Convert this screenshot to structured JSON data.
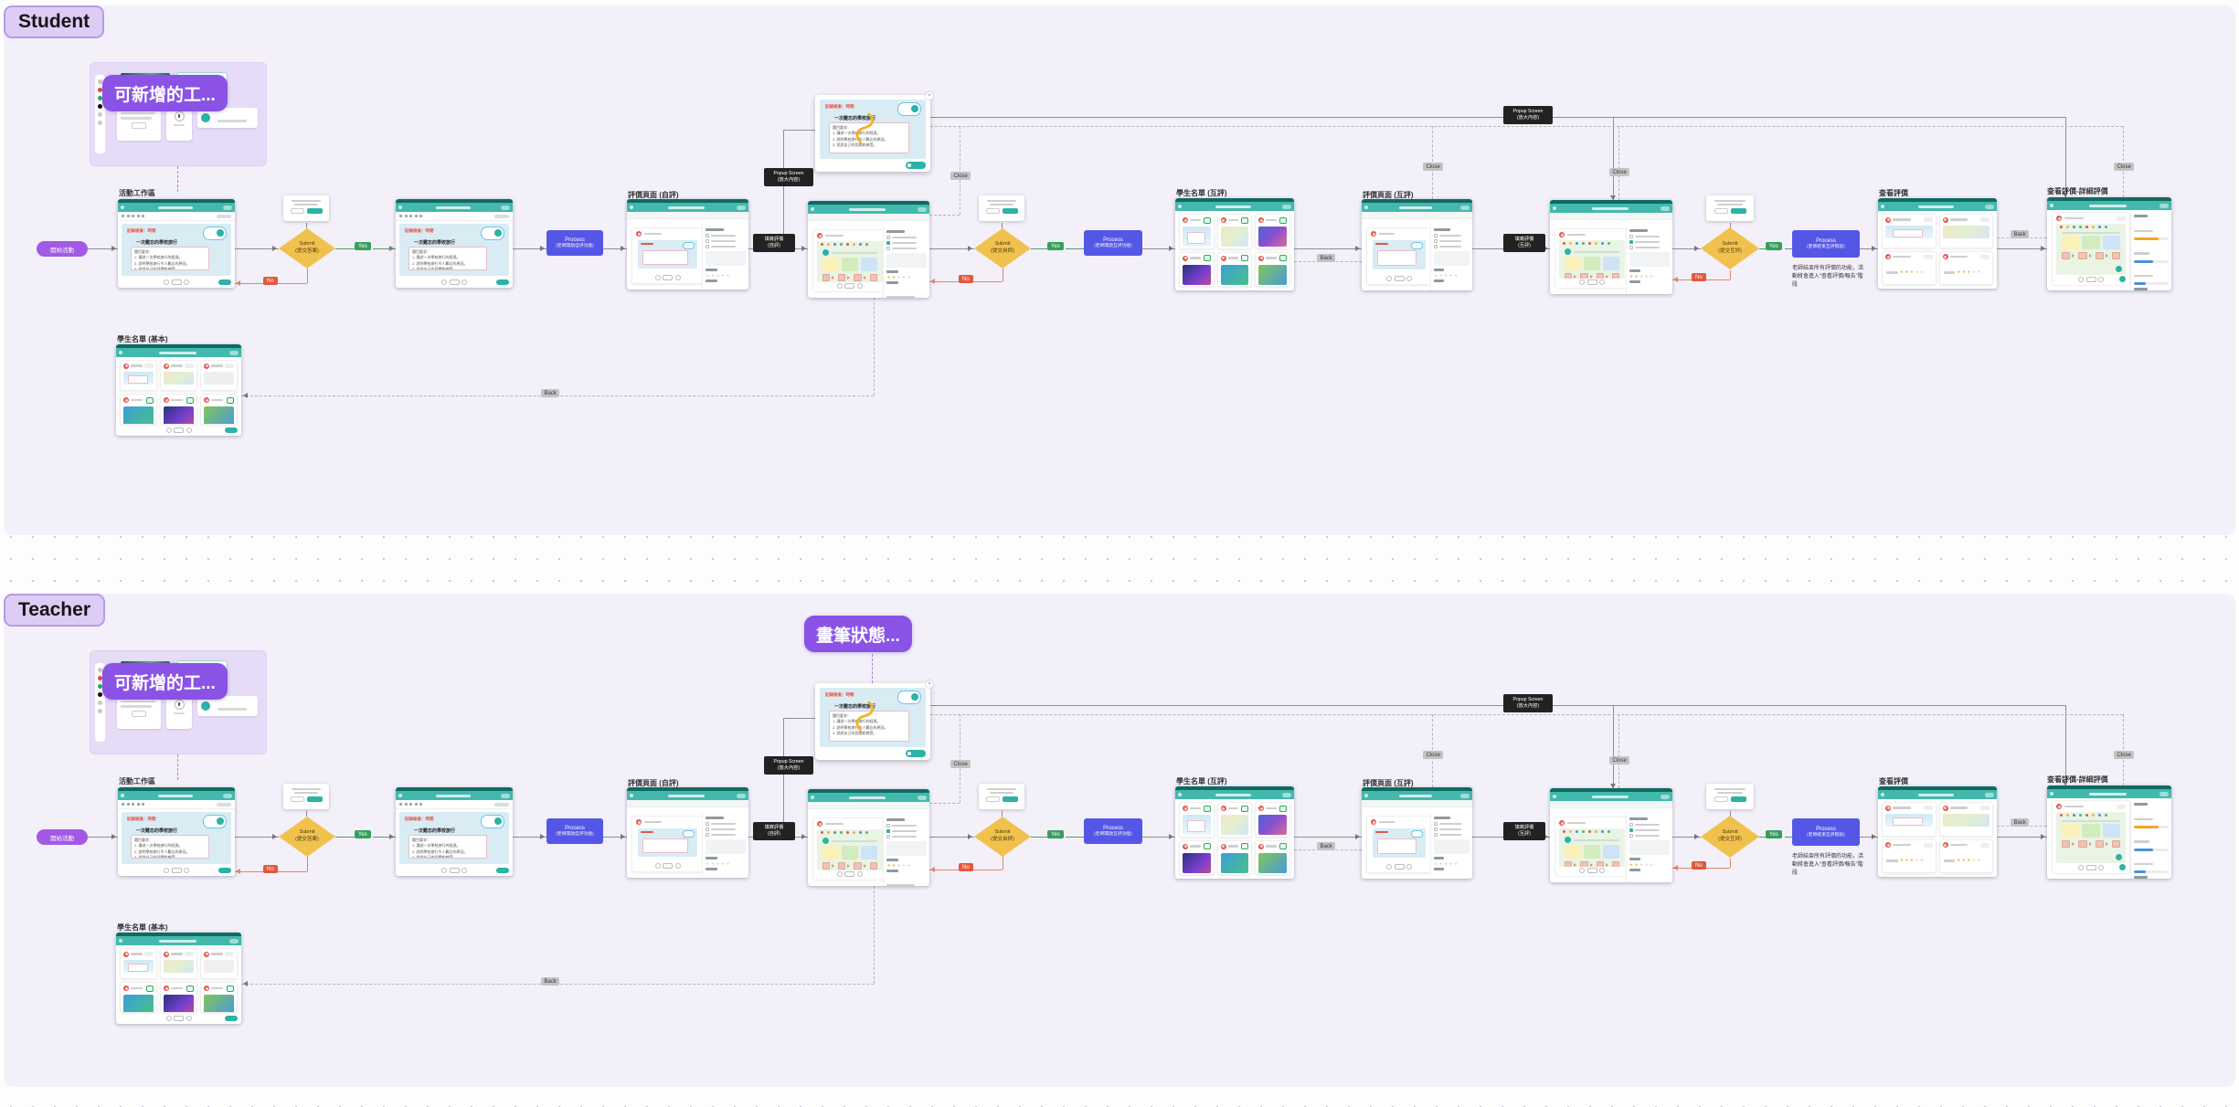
{
  "canvas": {
    "background": "#fdfdfe",
    "dot_color": "#c9c5d6",
    "section_background": "#f3f0fa",
    "accent_purple": "#8a53e6",
    "accent_teal": "#43b9ad",
    "diamond_yellow": "#f1c14d",
    "process_blue": "#5457e6"
  },
  "sections": [
    {
      "title": "Student",
      "pen_label": ""
    },
    {
      "title": "Teacher",
      "pen_label": "畫筆狀態..."
    }
  ],
  "flow": {
    "tool_panel_label": "可新增的工...",
    "start_label": "開始活動",
    "node_labels": {
      "workspace": "活動工作區",
      "eval_self": "評價頁面 (自評)",
      "roster_peer": "學生名單 (互評)",
      "eval_peer": "評價頁面 (互評)",
      "view": "查看評價",
      "view_detail": "查看評價-詳細評價",
      "roster_basic": "學生名單 (基本)"
    },
    "diamonds": [
      {
        "title": "Submit",
        "sub": "(提交答案)"
      },
      {
        "title": "Submit",
        "sub": "(提交自評)"
      },
      {
        "title": "Submit",
        "sub": "(提交互評)"
      }
    ],
    "processes": [
      {
        "title": "Process",
        "sub": "(老師開啟自評功能)"
      },
      {
        "title": "Process",
        "sub": "(老師開啟互評功能)"
      },
      {
        "title": "Process",
        "sub": "(老師結束互評階段)"
      }
    ],
    "process_note": "老師結束所有評價的功能，活動將會進入“查看評價/報告”階段",
    "edge_labels": {
      "yes": "Yes",
      "no": "No",
      "back": "Back",
      "close": "Close"
    },
    "black_labels": {
      "write_self_1": "填寫評價",
      "write_self_2": "(自評)",
      "write_peer_1": "填寫評價",
      "write_peer_2": "(互評)",
      "popup_1": "Popup Screen",
      "popup_2": "(放大內容)"
    },
    "ws": {
      "check": "記錄檢查：時間",
      "title": "一次難忘的學校旅行",
      "r0": "題目要求：",
      "r1": "1. 講述一次學校旅行的經過。",
      "r2": "2. 說明學校旅行令人難忘的原因。",
      "r3": "3. 說說自己的見聞和感受。"
    }
  }
}
